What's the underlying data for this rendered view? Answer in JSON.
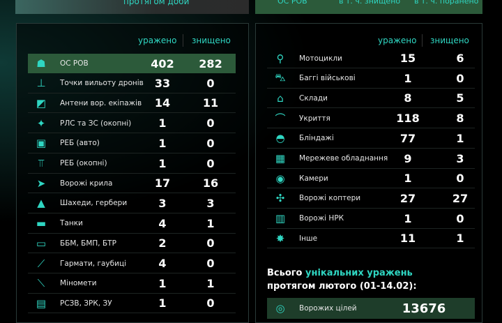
{
  "top": {
    "left_caption": "протягом доби",
    "right_items": [
      "ОС РОВ",
      "в т. ч. знищено",
      "в т. ч. поранено"
    ]
  },
  "headers": {
    "hit": "уражено",
    "destroyed": "знищено"
  },
  "left": [
    {
      "icon": "soldier-icon",
      "label": "ОС РОВ",
      "hit": "402",
      "destroyed": "282",
      "highlight": true
    },
    {
      "icon": "drone-launch-point-icon",
      "label": "Точки вильоту дронів",
      "hit": "33",
      "destroyed": "0"
    },
    {
      "icon": "antenna-icon",
      "label": "Антени вор. екіпажів",
      "hit": "14",
      "destroyed": "11"
    },
    {
      "icon": "radar-icon",
      "label": "РЛС та ЗС (окопні)",
      "hit": "1",
      "destroyed": "0"
    },
    {
      "icon": "ew-vehicle-icon",
      "label": "РЕБ (авто)",
      "hit": "1",
      "destroyed": "0"
    },
    {
      "icon": "ew-trench-icon",
      "label": "РЕБ (окопні)",
      "hit": "1",
      "destroyed": "0"
    },
    {
      "icon": "wing-drone-icon",
      "label": "Ворожі крила",
      "hit": "17",
      "destroyed": "16"
    },
    {
      "icon": "shahed-icon",
      "label": "Шахеди, гербери",
      "hit": "3",
      "destroyed": "3"
    },
    {
      "icon": "tank-icon",
      "label": "Танки",
      "hit": "4",
      "destroyed": "1"
    },
    {
      "icon": "apc-icon",
      "label": "ББМ, БМП, БТР",
      "hit": "2",
      "destroyed": "0"
    },
    {
      "icon": "artillery-icon",
      "label": "Гармати, гаубиці",
      "hit": "4",
      "destroyed": "0"
    },
    {
      "icon": "mortar-icon",
      "label": "Міномети",
      "hit": "1",
      "destroyed": "1"
    },
    {
      "icon": "mlrs-icon",
      "label": "РСЗВ, ЗРК, ЗУ",
      "hit": "1",
      "destroyed": "0"
    }
  ],
  "right": [
    {
      "icon": "motorcycle-icon",
      "label": "Мотоцикли",
      "hit": "15",
      "destroyed": "6"
    },
    {
      "icon": "buggy-icon",
      "label": "Баггі військові",
      "hit": "1",
      "destroyed": "0"
    },
    {
      "icon": "warehouse-icon",
      "label": "Склади",
      "hit": "8",
      "destroyed": "5"
    },
    {
      "icon": "shelter-icon",
      "label": "Укриття",
      "hit": "118",
      "destroyed": "8"
    },
    {
      "icon": "dugout-icon",
      "label": "Бліндажі",
      "hit": "77",
      "destroyed": "1"
    },
    {
      "icon": "network-equipment-icon",
      "label": "Мережеве обладнання",
      "hit": "9",
      "destroyed": "3"
    },
    {
      "icon": "camera-icon",
      "label": "Камери",
      "hit": "1",
      "destroyed": "0"
    },
    {
      "icon": "quadcopter-icon",
      "label": "Ворожі коптери",
      "hit": "27",
      "destroyed": "27"
    },
    {
      "icon": "ugv-icon",
      "label": "Ворожі НРК",
      "hit": "1",
      "destroyed": "0"
    },
    {
      "icon": "explosion-icon",
      "label": "Інше",
      "hit": "11",
      "destroyed": "1"
    }
  ],
  "total": {
    "prefix": "Всього ",
    "accent": "унікальних уражень",
    "line2": "протягом лютого (01-14.02):",
    "label": "Ворожих цілей",
    "value": "13676",
    "icon": "target-icon"
  },
  "colors": {
    "accent": "#2fd6c2",
    "highlight": "#2c5a3a"
  }
}
